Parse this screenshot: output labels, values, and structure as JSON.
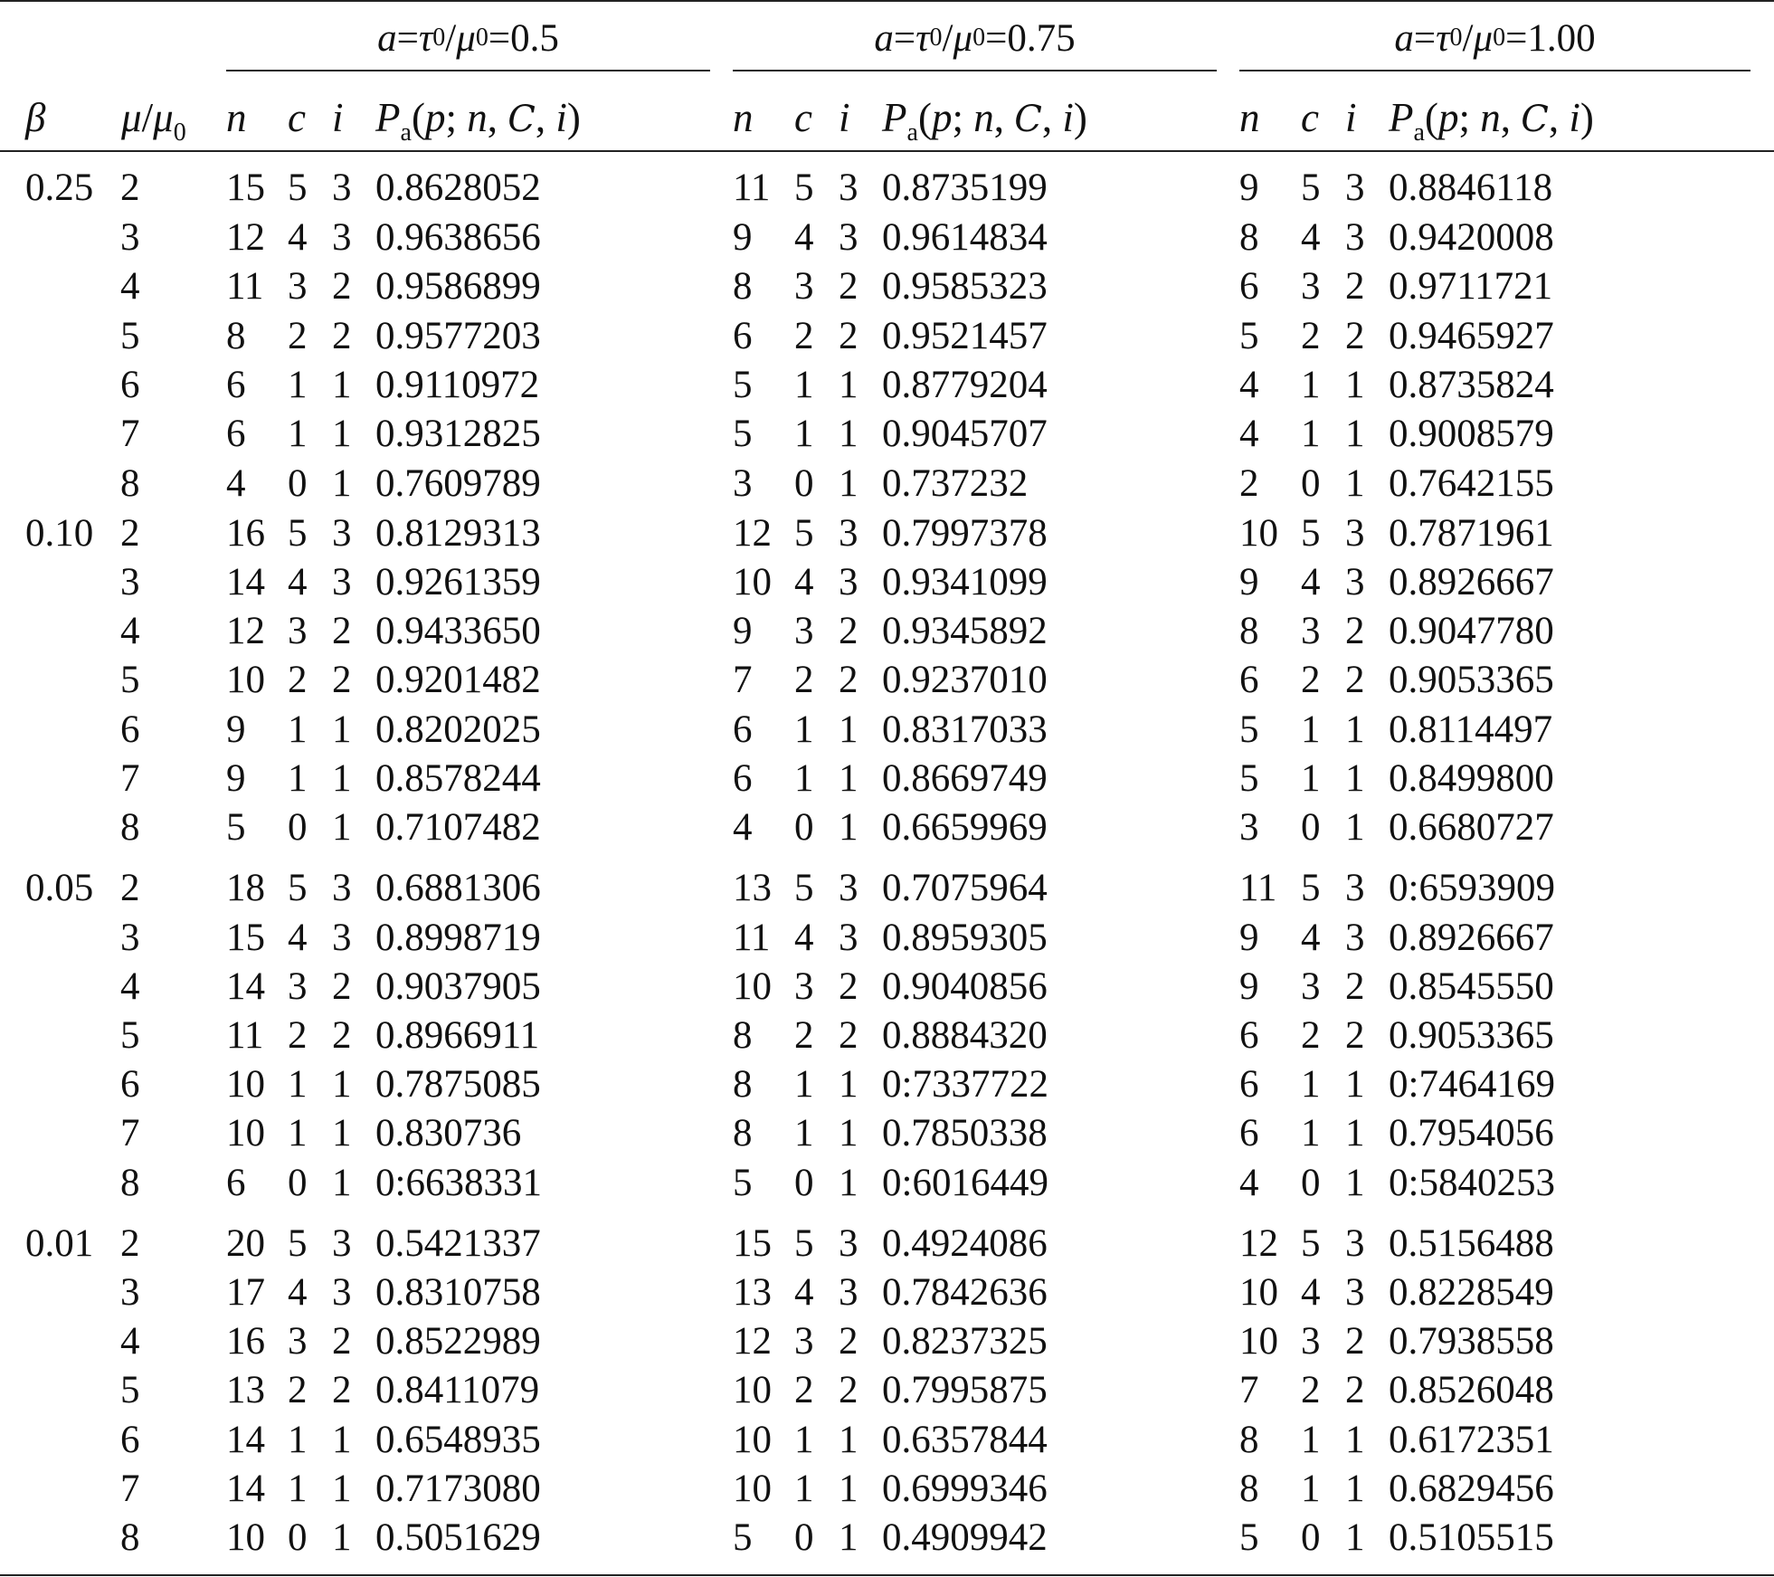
{
  "header": {
    "groups": [
      {
        "label_a": "a",
        "label_eq1": " = ",
        "label_tau": "τ",
        "label_tau_sub": "0",
        "label_slash": "/",
        "label_mu": "μ",
        "label_mu_sub": "0",
        "label_eq2": " = ",
        "label_value": "0.5"
      },
      {
        "label_a": "a",
        "label_eq1": " = ",
        "label_tau": "τ",
        "label_tau_sub": "0",
        "label_slash": "/",
        "label_mu": "μ",
        "label_mu_sub": "0",
        "label_eq2": " = ",
        "label_value": "0.75"
      },
      {
        "label_a": "a",
        "label_eq1": " = ",
        "label_tau": "τ",
        "label_tau_sub": "0",
        "label_slash": "/",
        "label_mu": "μ",
        "label_mu_sub": "0",
        "label_eq2": " = ",
        "label_value": "1.00"
      }
    ],
    "beta": "β",
    "mu_ratio": {
      "mu": "μ",
      "slash": "/",
      "mu0": "μ",
      "sub": "0"
    },
    "n": "n",
    "c": "c",
    "i": "i",
    "pa": {
      "P": "P",
      "sub": "a",
      "open": "(",
      "p": "p",
      "semi": "; ",
      "n": "n",
      "comma1": ", ",
      "C": "C",
      "comma2": ", ",
      "i": "i",
      "close": ")"
    }
  },
  "rows": [
    {
      "beta": "0.25",
      "mu": "2",
      "g": [
        [
          "15",
          "5",
          "3",
          "0.8628052"
        ],
        [
          "11",
          "5",
          "3",
          "0.8735199"
        ],
        [
          "9",
          "5",
          "3",
          "0.8846118"
        ]
      ]
    },
    {
      "beta": "",
      "mu": "3",
      "g": [
        [
          "12",
          "4",
          "3",
          "0.9638656"
        ],
        [
          "9",
          "4",
          "3",
          "0.9614834"
        ],
        [
          "8",
          "4",
          "3",
          "0.9420008"
        ]
      ]
    },
    {
      "beta": "",
      "mu": "4",
      "g": [
        [
          "11",
          "3",
          "2",
          "0.9586899"
        ],
        [
          "8",
          "3",
          "2",
          "0.9585323"
        ],
        [
          "6",
          "3",
          "2",
          "0.9711721"
        ]
      ]
    },
    {
      "beta": "",
      "mu": "5",
      "g": [
        [
          "8",
          "2",
          "2",
          "0.9577203"
        ],
        [
          "6",
          "2",
          "2",
          "0.9521457"
        ],
        [
          "5",
          "2",
          "2",
          "0.9465927"
        ]
      ]
    },
    {
      "beta": "",
      "mu": "6",
      "g": [
        [
          "6",
          "1",
          "1",
          "0.9110972"
        ],
        [
          "5",
          "1",
          "1",
          "0.8779204"
        ],
        [
          "4",
          "1",
          "1",
          "0.8735824"
        ]
      ]
    },
    {
      "beta": "",
      "mu": "7",
      "g": [
        [
          "6",
          "1",
          "1",
          "0.9312825"
        ],
        [
          "5",
          "1",
          "1",
          "0.9045707"
        ],
        [
          "4",
          "1",
          "1",
          "0.9008579"
        ]
      ]
    },
    {
      "beta": "",
      "mu": "8",
      "g": [
        [
          "4",
          "0",
          "1",
          "0.7609789"
        ],
        [
          "3",
          "0",
          "1",
          "0.737232"
        ],
        [
          "2",
          "0",
          "1",
          "0.7642155"
        ]
      ]
    },
    {
      "beta": "0.10",
      "mu": "2",
      "g": [
        [
          "16",
          "5",
          "3",
          "0.8129313"
        ],
        [
          "12",
          "5",
          "3",
          "0.7997378"
        ],
        [
          "10",
          "5",
          "3",
          "0.7871961"
        ]
      ]
    },
    {
      "beta": "",
      "mu": "3",
      "g": [
        [
          "14",
          "4",
          "3",
          "0.9261359"
        ],
        [
          "10",
          "4",
          "3",
          "0.9341099"
        ],
        [
          "9",
          "4",
          "3",
          "0.8926667"
        ]
      ]
    },
    {
      "beta": "",
      "mu": "4",
      "g": [
        [
          "12",
          "3",
          "2",
          "0.9433650"
        ],
        [
          "9",
          "3",
          "2",
          "0.9345892"
        ],
        [
          "8",
          "3",
          "2",
          "0.9047780"
        ]
      ]
    },
    {
      "beta": "",
      "mu": "5",
      "g": [
        [
          "10",
          "2",
          "2",
          "0.9201482"
        ],
        [
          "7",
          "2",
          "2",
          "0.9237010"
        ],
        [
          "6",
          "2",
          "2",
          "0.9053365"
        ]
      ]
    },
    {
      "beta": "",
      "mu": "6",
      "g": [
        [
          "9",
          "1",
          "1",
          "0.8202025"
        ],
        [
          "6",
          "1",
          "1",
          "0.8317033"
        ],
        [
          "5",
          "1",
          "1",
          "0.8114497"
        ]
      ]
    },
    {
      "beta": "",
      "mu": "7",
      "g": [
        [
          "9",
          "1",
          "1",
          "0.8578244"
        ],
        [
          "6",
          "1",
          "1",
          "0.8669749"
        ],
        [
          "5",
          "1",
          "1",
          "0.8499800"
        ]
      ]
    },
    {
      "beta": "",
      "mu": "8",
      "g": [
        [
          "5",
          "0",
          "1",
          "0.7107482"
        ],
        [
          "4",
          "0",
          "1",
          "0.6659969"
        ],
        [
          "3",
          "0",
          "1",
          "0.6680727"
        ]
      ]
    },
    {
      "beta": "0.05",
      "mu": "2",
      "g": [
        [
          "18",
          "5",
          "3",
          "0.6881306"
        ],
        [
          "13",
          "5",
          "3",
          "0.7075964"
        ],
        [
          "11",
          "5",
          "3",
          "0:6593909"
        ]
      ]
    },
    {
      "beta": "",
      "mu": "3",
      "g": [
        [
          "15",
          "4",
          "3",
          "0.8998719"
        ],
        [
          "11",
          "4",
          "3",
          "0.8959305"
        ],
        [
          "9",
          "4",
          "3",
          "0.8926667"
        ]
      ]
    },
    {
      "beta": "",
      "mu": "4",
      "g": [
        [
          "14",
          "3",
          "2",
          "0.9037905"
        ],
        [
          "10",
          "3",
          "2",
          "0.9040856"
        ],
        [
          "9",
          "3",
          "2",
          "0.8545550"
        ]
      ]
    },
    {
      "beta": "",
      "mu": "5",
      "g": [
        [
          "11",
          "2",
          "2",
          "0.8966911"
        ],
        [
          "8",
          "2",
          "2",
          "0.8884320"
        ],
        [
          "6",
          "2",
          "2",
          "0.9053365"
        ]
      ]
    },
    {
      "beta": "",
      "mu": "6",
      "g": [
        [
          "10",
          "1",
          "1",
          "0.7875085"
        ],
        [
          "8",
          "1",
          "1",
          "0:7337722"
        ],
        [
          "6",
          "1",
          "1",
          "0:7464169"
        ]
      ]
    },
    {
      "beta": "",
      "mu": "7",
      "g": [
        [
          "10",
          "1",
          "1",
          "0.830736"
        ],
        [
          "8",
          "1",
          "1",
          "0.7850338"
        ],
        [
          "6",
          "1",
          "1",
          "0.7954056"
        ]
      ]
    },
    {
      "beta": "",
      "mu": "8",
      "g": [
        [
          "6",
          "0",
          "1",
          "0:6638331"
        ],
        [
          "5",
          "0",
          "1",
          "0:6016449"
        ],
        [
          "4",
          "0",
          "1",
          "0:5840253"
        ]
      ]
    },
    {
      "beta": "0.01",
      "mu": "2",
      "g": [
        [
          "20",
          "5",
          "3",
          "0.5421337"
        ],
        [
          "15",
          "5",
          "3",
          "0.4924086"
        ],
        [
          "12",
          "5",
          "3",
          "0.5156488"
        ]
      ]
    },
    {
      "beta": "",
      "mu": "3",
      "g": [
        [
          "17",
          "4",
          "3",
          "0.8310758"
        ],
        [
          "13",
          "4",
          "3",
          "0.7842636"
        ],
        [
          "10",
          "4",
          "3",
          "0.8228549"
        ]
      ]
    },
    {
      "beta": "",
      "mu": "4",
      "g": [
        [
          "16",
          "3",
          "2",
          "0.8522989"
        ],
        [
          "12",
          "3",
          "2",
          "0.8237325"
        ],
        [
          "10",
          "3",
          "2",
          "0.7938558"
        ]
      ]
    },
    {
      "beta": "",
      "mu": "5",
      "g": [
        [
          "13",
          "2",
          "2",
          "0.8411079"
        ],
        [
          "10",
          "2",
          "2",
          "0.7995875"
        ],
        [
          "7",
          "2",
          "2",
          "0.8526048"
        ]
      ]
    },
    {
      "beta": "",
      "mu": "6",
      "g": [
        [
          "14",
          "1",
          "1",
          "0.6548935"
        ],
        [
          "10",
          "1",
          "1",
          "0.6357844"
        ],
        [
          "8",
          "1",
          "1",
          "0.6172351"
        ]
      ]
    },
    {
      "beta": "",
      "mu": "7",
      "g": [
        [
          "14",
          "1",
          "1",
          "0.7173080"
        ],
        [
          "10",
          "1",
          "1",
          "0.6999346"
        ],
        [
          "8",
          "1",
          "1",
          "0.6829456"
        ]
      ]
    },
    {
      "beta": "",
      "mu": "8",
      "g": [
        [
          "10",
          "0",
          "1",
          "0.5051629"
        ],
        [
          "5",
          "0",
          "1",
          "0.4909942"
        ],
        [
          "5",
          "0",
          "1",
          "0.5105515"
        ]
      ]
    }
  ]
}
